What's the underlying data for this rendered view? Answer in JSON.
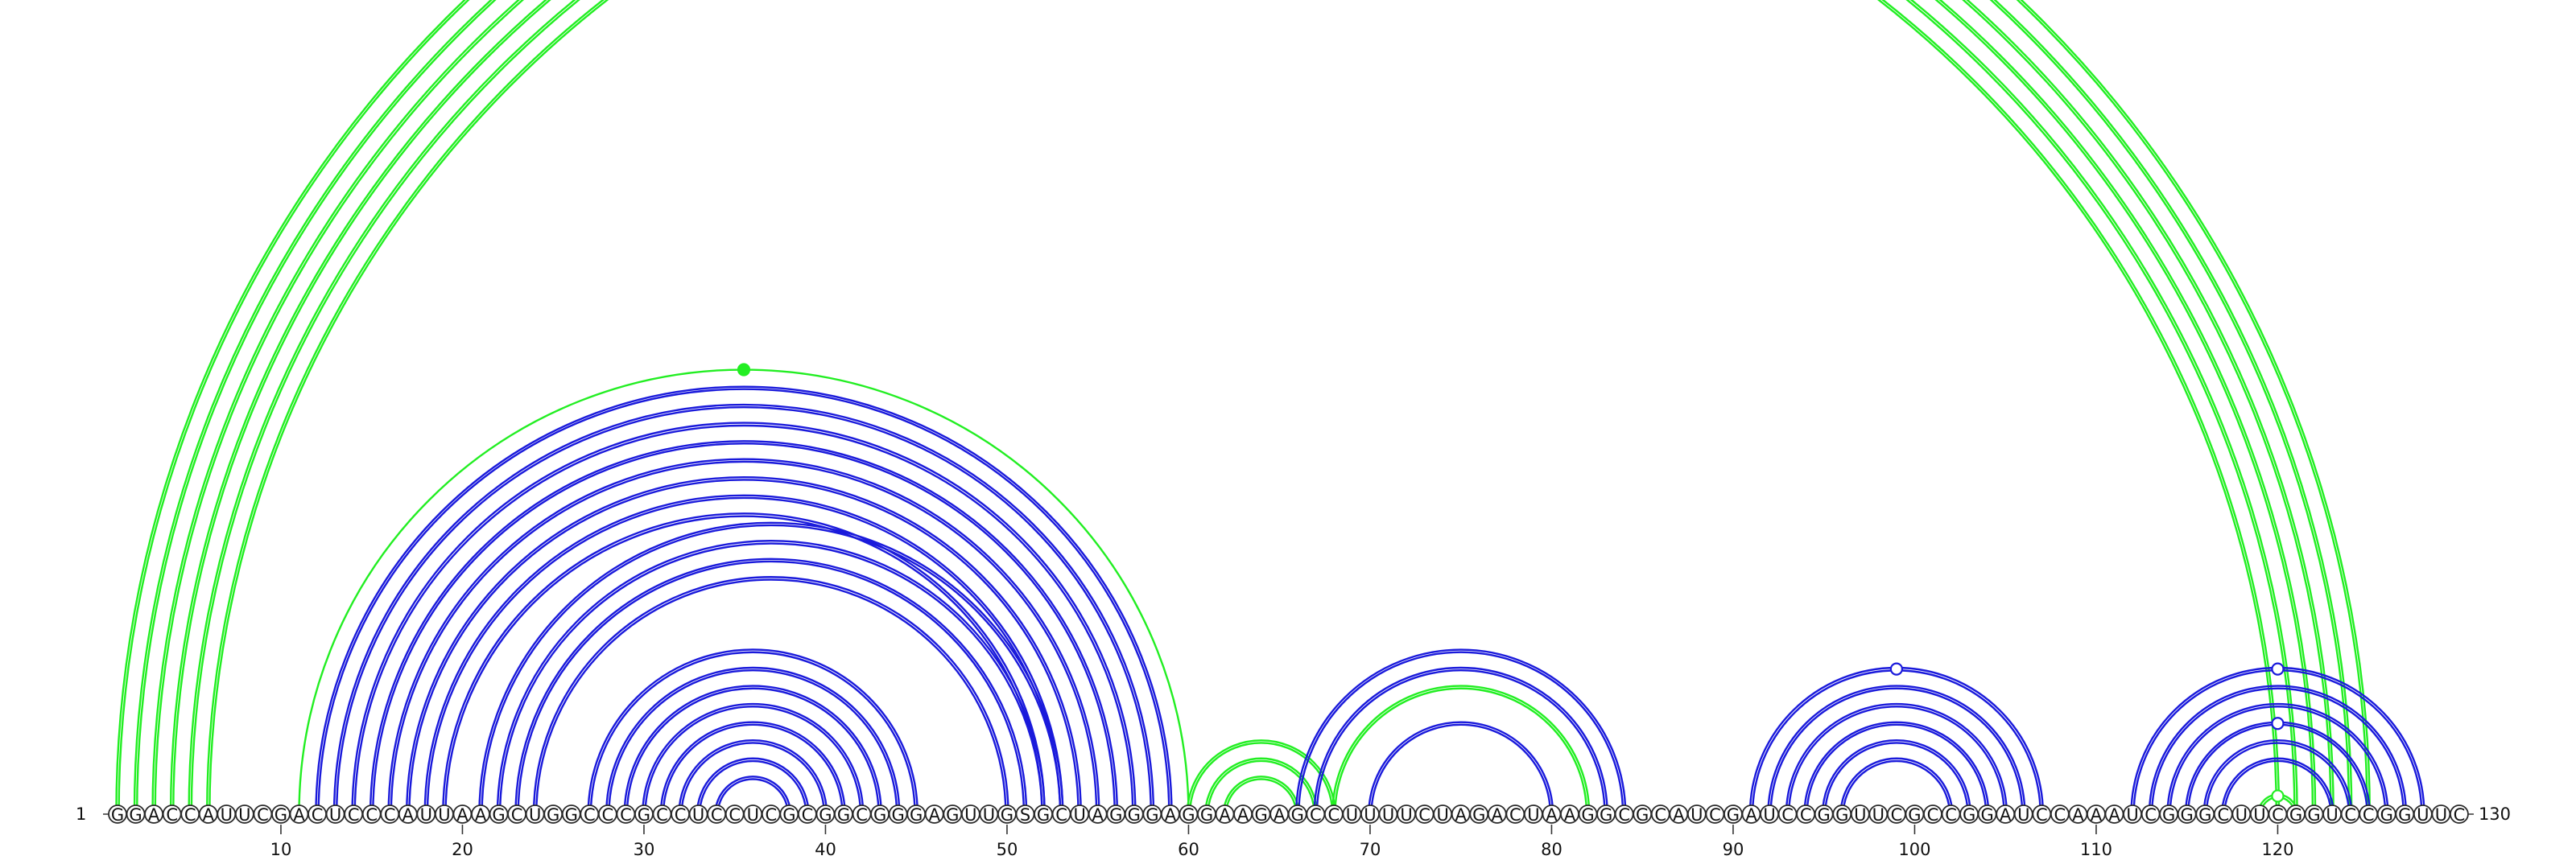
{
  "sequence": "GGACCAUUCGACUCCCAUUAAGCUGGCCCGCCUCCUCGCGGCGGGAGUUGSGCUAGGGAGGAAGAGCCUUUUCUAGACUAAGGCGCAUCGAUCCGGUUCGCCGGAUCCAAAUCGGGCUUCGGUCCGGUUC",
  "start_label": "1",
  "end_label": "130",
  "tick_labels": [
    "10",
    "20",
    "30",
    "40",
    "50",
    "60",
    "70",
    "80",
    "90",
    "100",
    "110",
    "120"
  ],
  "colors": {
    "blue": "#1a1adb",
    "green": "#22ee22"
  },
  "chart_data": {
    "type": "arc-diagram",
    "length": 130,
    "ticks": [
      10,
      20,
      30,
      40,
      50,
      60,
      70,
      80,
      90,
      100,
      110,
      120
    ],
    "arc_groups": [
      {
        "color": "green",
        "lines": 2,
        "outer": [
          1,
          125
        ],
        "count": 6,
        "marker": {
          "pos": 65,
          "fill": "open"
        }
      },
      {
        "color": "green",
        "lines": 1,
        "outer": [
          11,
          60
        ],
        "count": 1,
        "marker": {
          "pos": 36,
          "fill": "solid"
        }
      },
      {
        "color": "blue",
        "lines": 2,
        "outer": [
          12,
          59
        ],
        "count": 8
      },
      {
        "color": "blue",
        "lines": 2,
        "outer": [
          21,
          53
        ],
        "count": 4
      },
      {
        "color": "blue",
        "lines": 2,
        "outer": [
          27,
          45
        ],
        "count": 8
      },
      {
        "color": "green",
        "lines": 2,
        "outer": [
          60,
          68
        ],
        "count": 3
      },
      {
        "color": "blue",
        "lines": 2,
        "outer": [
          66,
          84
        ],
        "count": 2
      },
      {
        "color": "green",
        "lines": 2,
        "outer": [
          68,
          82
        ],
        "count": 1
      },
      {
        "color": "blue",
        "lines": 2,
        "outer": [
          70,
          80
        ],
        "count": 1
      },
      {
        "color": "blue",
        "lines": 2,
        "outer": [
          91,
          107
        ],
        "count": 6,
        "marker": {
          "pos": 99,
          "fill": "open"
        }
      },
      {
        "color": "blue",
        "lines": 2,
        "outer": [
          112,
          128
        ],
        "count": 3,
        "marker": {
          "pos": 120,
          "fill": "open"
        }
      },
      {
        "color": "blue",
        "lines": 2,
        "outer": [
          115,
          125
        ],
        "count": 3,
        "marker": {
          "pos": 120,
          "fill": "open"
        }
      },
      {
        "color": "green",
        "lines": 2,
        "outer": [
          119,
          121
        ],
        "count": 1,
        "marker": {
          "pos": 120,
          "fill": "open"
        }
      }
    ]
  }
}
